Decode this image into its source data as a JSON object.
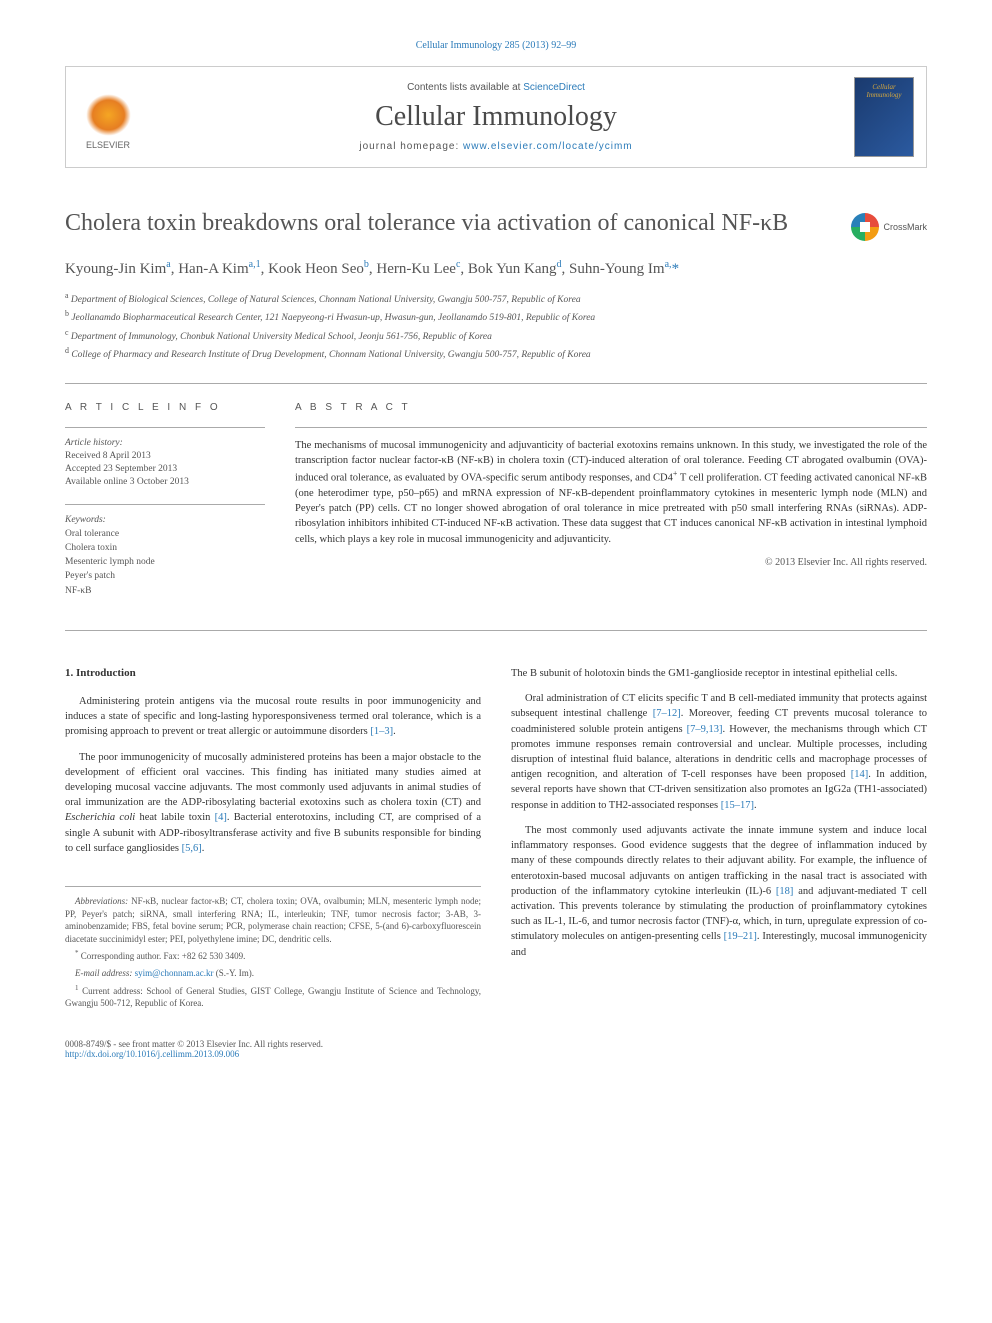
{
  "header": {
    "top_reference": "Cellular Immunology 285 (2013) 92–99",
    "contents_line_prefix": "Contents lists available at ",
    "contents_link": "ScienceDirect",
    "journal_name": "Cellular Immunology",
    "homepage_prefix": "journal homepage: ",
    "homepage_url": "www.elsevier.com/locate/ycimm",
    "publisher": "ELSEVIER",
    "cover_title": "Cellular Immunology"
  },
  "crossmark": {
    "label": "CrossMark"
  },
  "article": {
    "title": "Cholera toxin breakdowns oral tolerance via activation of canonical NF-κB",
    "authors_html": "Kyoung-Jin Kim<sup>a</sup>, Han-A Kim<sup>a,1</sup>, Kook Heon Seo<sup>b</sup>, Hern-Ku Lee<sup>c</sup>, Bok Yun Kang<sup>d</sup>, Suhn-Young Im<sup>a,</sup><span class='star'>*</span>",
    "affiliations": [
      "<sup>a</sup> Department of Biological Sciences, College of Natural Sciences, Chonnam National University, Gwangju 500-757, Republic of Korea",
      "<sup>b</sup> Jeollanamdo Biopharmaceutical Research Center, 121 Naepyeong-ri Hwasun-up, Hwasun-gun, Jeollanamdo 519-801, Republic of Korea",
      "<sup>c</sup> Department of Immunology, Chonbuk National University Medical School, Jeonju 561-756, Republic of Korea",
      "<sup>d</sup> College of Pharmacy and Research Institute of Drug Development, Chonnam National University, Gwangju 500-757, Republic of Korea"
    ]
  },
  "info": {
    "heading": "A R T I C L E   I N F O",
    "history_label": "Article history:",
    "history": [
      "Received 8 April 2013",
      "Accepted 23 September 2013",
      "Available online 3 October 2013"
    ],
    "keywords_label": "Keywords:",
    "keywords": [
      "Oral tolerance",
      "Cholera toxin",
      "Mesenteric lymph node",
      "Peyer's patch",
      "NF-κB"
    ]
  },
  "abstract": {
    "heading": "A B S T R A C T",
    "text": "The mechanisms of mucosal immunogenicity and adjuvanticity of bacterial exotoxins remains unknown. In this study, we investigated the role of the transcription factor nuclear factor-κB (NF-κB) in cholera toxin (CT)-induced alteration of oral tolerance. Feeding CT abrogated ovalbumin (OVA)-induced oral tolerance, as evaluated by OVA-specific serum antibody responses, and CD4<sup>+</sup> T cell proliferation. CT feeding activated canonical NF-κB (one heterodimer type, p50–p65) and mRNA expression of NF-κB-dependent proinflammatory cytokines in mesenteric lymph node (MLN) and Peyer's patch (PP) cells. CT no longer showed abrogation of oral tolerance in mice pretreated with p50 small interfering RNAs (siRNAs). ADP-ribosylation inhibitors inhibited CT-induced NF-κB activation. These data suggest that CT induces canonical NF-κB activation in intestinal lymphoid cells, which plays a key role in mucosal immunogenicity and adjuvanticity.",
    "copyright": "© 2013 Elsevier Inc. All rights reserved."
  },
  "body": {
    "section_num": "1.",
    "section_title": "Introduction",
    "left_paragraphs": [
      "Administering protein antigens via the mucosal route results in poor immunogenicity and induces a state of specific and long-lasting hyporesponsiveness termed oral tolerance, which is a promising approach to prevent or treat allergic or autoimmune disorders <span class='ref-link'>[1–3]</span>.",
      "The poor immunogenicity of mucosally administered proteins has been a major obstacle to the development of efficient oral vaccines. This finding has initiated many studies aimed at developing mucosal vaccine adjuvants. The most commonly used adjuvants in animal studies of oral immunization are the ADP-ribosylating bacterial exotoxins such as cholera toxin (CT) and <span class='italic'>Escherichia coli</span> heat labile toxin <span class='ref-link'>[4]</span>. Bacterial enterotoxins, including CT, are comprised of a single A subunit with ADP-ribosyltransferase activity and five B subunits responsible for binding to cell surface gangliosides <span class='ref-link'>[5,6]</span>."
    ],
    "right_paragraphs": [
      "The B subunit of holotoxin binds the GM1-ganglioside receptor in intestinal epithelial cells.",
      "Oral administration of CT elicits specific T and B cell-mediated immunity that protects against subsequent intestinal challenge <span class='ref-link'>[7–12]</span>. Moreover, feeding CT prevents mucosal tolerance to coadministered soluble protein antigens <span class='ref-link'>[7–9,13]</span>. However, the mechanisms through which CT promotes immune responses remain controversial and unclear. Multiple processes, including disruption of intestinal fluid balance, alterations in dendritic cells and macrophage processes of antigen recognition, and alteration of T-cell responses have been proposed <span class='ref-link'>[14]</span>. In addition, several reports have shown that CT-driven sensitization also promotes an IgG2a (TH1-associated) response in addition to TH2-associated responses <span class='ref-link'>[15–17]</span>.",
      "The most commonly used adjuvants activate the innate immune system and induce local inflammatory responses. Good evidence suggests that the degree of inflammation induced by many of these compounds directly relates to their adjuvant ability. For example, the influence of enterotoxin-based mucosal adjuvants on antigen trafficking in the nasal tract is associated with production of the inflammatory cytokine interleukin (IL)-6 <span class='ref-link'>[18]</span> and adjuvant-mediated T cell activation. This prevents tolerance by stimulating the production of proinflammatory cytokines such as IL-1, IL-6, and tumor necrosis factor (TNF)-α, which, in turn, upregulate expression of co-stimulatory molecules on antigen-presenting cells <span class='ref-link'>[19–21]</span>. Interestingly, mucosal immunogenicity and"
    ]
  },
  "footnotes": {
    "abbrev_label": "Abbreviations:",
    "abbrev_text": " NF-κB, nuclear factor-κB; CT, cholera toxin; OVA, ovalbumin; MLN, mesenteric lymph node; PP, Peyer's patch; siRNA, small interfering RNA; IL, interleukin; TNF, tumor necrosis factor; 3-AB, 3-aminobenzamide; FBS, fetal bovine serum; PCR, polymerase chain reaction; CFSE, 5-(and 6)-carboxyfluorescein diacetate succinimidyl ester; PEI, polyethylene imine; DC, dendritic cells.",
    "corr_text": " Corresponding author. Fax: +82 62 530 3409.",
    "email_label": "E-mail address:",
    "email": "syim@chonnam.ac.kr",
    "email_suffix": " (S.-Y. Im).",
    "curr_addr": " Current address: School of General Studies, GIST College, Gwangju Institute of Science and Technology, Gwangju 500-712, Republic of Korea."
  },
  "footer": {
    "left_line1": "0008-8749/$ - see front matter © 2013 Elsevier Inc. All rights reserved.",
    "left_line2": "http://dx.doi.org/10.1016/j.cellimm.2013.09.006"
  },
  "colors": {
    "link": "#2b7bb9",
    "text": "#333333",
    "muted": "#555555",
    "border": "#aaaaaa"
  }
}
